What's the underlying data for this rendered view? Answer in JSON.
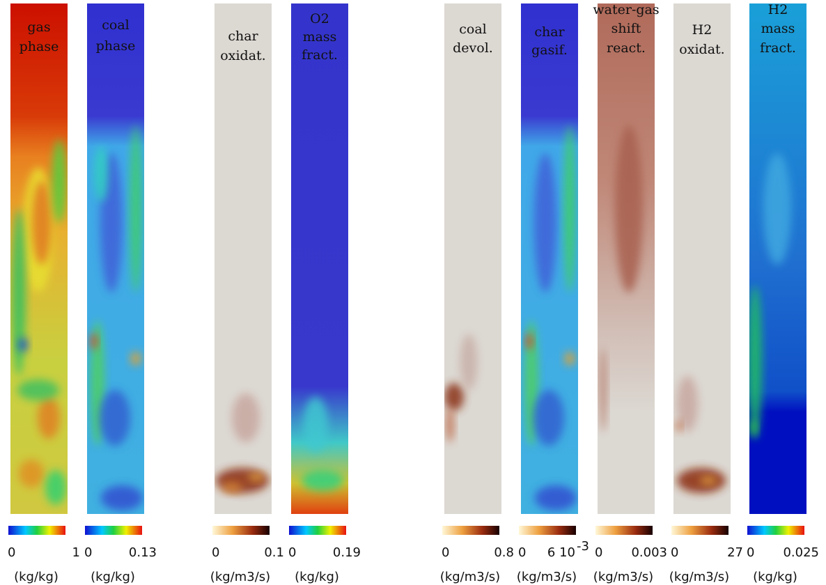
{
  "panels": [
    {
      "title": [
        "gas",
        "phase"
      ],
      "min": "0",
      "max": "1",
      "unit": "(kg/kg)"
    },
    {
      "title": [
        "coal",
        "phase"
      ],
      "min": "0",
      "max": "0.13",
      "unit": "(kg/kg)"
    },
    {
      "title": [
        "char",
        "oxidat."
      ],
      "min": "0",
      "max": "0.1",
      "unit": "(kg/m3/s)"
    },
    {
      "title": [
        "O2",
        "mass",
        "fract."
      ],
      "min": "0",
      "max": "0.19",
      "unit": "(kg/kg)"
    },
    {
      "title": [
        "coal",
        "devol."
      ],
      "min": "0",
      "max": "0.8",
      "unit": "(kg/m3/s)"
    },
    {
      "title": [
        "char",
        "gasif."
      ],
      "min": "0",
      "max": "6 10",
      "max_sup": "-3",
      "unit": "(kg/m3/s)"
    },
    {
      "title": [
        "water-gas",
        "shift",
        "react."
      ],
      "min": "0",
      "max": "0.003",
      "unit": "(kg/m3/s)"
    },
    {
      "title": [
        "H2",
        "oxidat."
      ],
      "min": "0",
      "max": "27",
      "unit": "(kg/m3/s)"
    },
    {
      "title": [
        "H2",
        "mass",
        "fract."
      ],
      "min": "0",
      "max": "0.025",
      "unit": "(kg/kg)"
    }
  ]
}
